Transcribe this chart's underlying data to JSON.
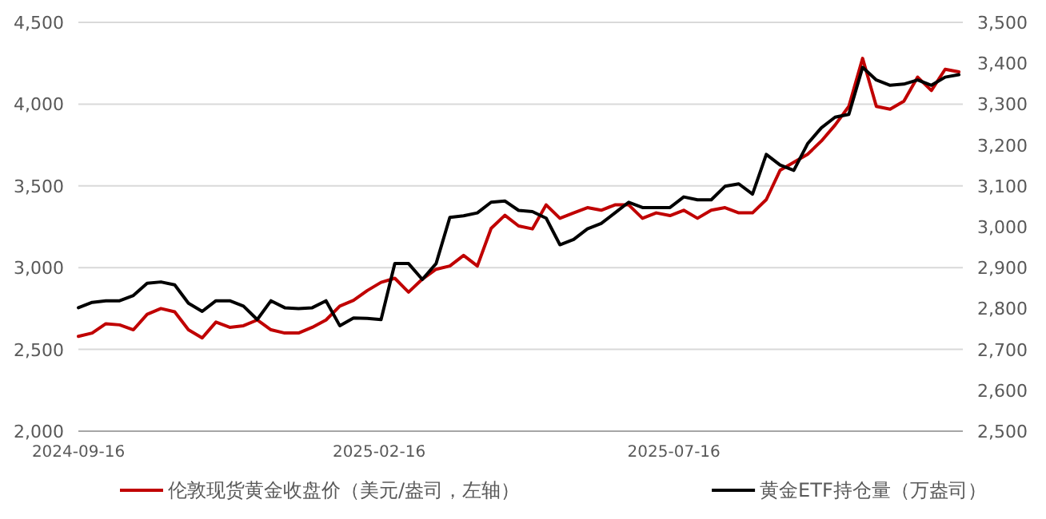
{
  "chart_data": {
    "type": "line",
    "x": [
      "2024-09-16",
      "2024-09-23",
      "2024-09-30",
      "2024-10-07",
      "2024-10-14",
      "2024-10-21",
      "2024-10-28",
      "2024-11-04",
      "2024-11-11",
      "2024-11-18",
      "2024-11-25",
      "2024-12-02",
      "2024-12-09",
      "2024-12-16",
      "2024-12-23",
      "2024-12-30",
      "2025-01-06",
      "2025-01-13",
      "2025-01-20",
      "2025-01-27",
      "2025-02-03",
      "2025-02-10",
      "2025-02-17",
      "2025-02-24",
      "2025-03-03",
      "2025-03-10",
      "2025-03-17",
      "2025-03-24",
      "2025-03-31",
      "2025-04-07",
      "2025-04-14",
      "2025-04-21",
      "2025-04-28",
      "2025-05-05",
      "2025-05-12",
      "2025-05-19",
      "2025-05-26",
      "2025-06-02",
      "2025-06-09",
      "2025-06-16",
      "2025-06-23",
      "2025-06-30",
      "2025-07-07",
      "2025-07-14",
      "2025-07-21",
      "2025-07-28",
      "2025-08-04",
      "2025-08-11",
      "2025-08-18",
      "2025-08-25",
      "2025-09-01",
      "2025-09-08",
      "2025-09-15",
      "2025-09-22",
      "2025-09-29",
      "2025-10-06",
      "2025-10-13",
      "2025-10-20",
      "2025-10-27",
      "2025-11-03",
      "2025-11-10",
      "2025-11-17",
      "2025-11-24",
      "2025-12-01",
      "2025-12-08"
    ],
    "series": [
      {
        "name": "伦敦现货黄金收盘价（美元/盎司，左轴）",
        "color": "#c00000",
        "values": [
          2580,
          2600,
          2657,
          2650,
          2620,
          2715,
          2750,
          2730,
          2620,
          2570,
          2667,
          2635,
          2645,
          2680,
          2620,
          2600,
          2600,
          2635,
          2680,
          2765,
          2800,
          2860,
          2910,
          2935,
          2850,
          2930,
          2990,
          3010,
          3075,
          3010,
          3240,
          3320,
          3255,
          3237,
          3384,
          3302,
          3335,
          3367,
          3351,
          3384,
          3384,
          3302,
          3335,
          3318,
          3351,
          3302,
          3351,
          3367,
          3335,
          3335,
          3416,
          3595,
          3644,
          3693,
          3774,
          3872,
          3986,
          4280,
          3986,
          3969,
          4018,
          4165,
          4083,
          4213,
          4197
        ]
      },
      {
        "name": "黄金ETF持仓量（万盎司）",
        "color": "#000000",
        "axis": "y2",
        "values": [
          2802,
          2815,
          2819,
          2819,
          2832,
          2862,
          2865,
          2858,
          2813,
          2793,
          2819,
          2819,
          2806,
          2773,
          2819,
          2802,
          2800,
          2802,
          2819,
          2758,
          2777,
          2776,
          2773,
          2910,
          2910,
          2871,
          2910,
          3023,
          3027,
          3034,
          3060,
          3063,
          3040,
          3037,
          3021,
          2956,
          2969,
          2995,
          3008,
          3034,
          3060,
          3047,
          3047,
          3047,
          3073,
          3066,
          3066,
          3099,
          3105,
          3080,
          3177,
          3151,
          3138,
          3203,
          3242,
          3268,
          3275,
          3390,
          3359,
          3346,
          3349,
          3359,
          3346,
          3366,
          3372
        ]
      }
    ],
    "xlim": [
      "2024-09-16",
      "2025-12-10"
    ],
    "xticks": [
      {
        "value": "2024-09-16",
        "label": "2024-09-16"
      },
      {
        "value": "2025-02-16",
        "label": "2025-02-16"
      },
      {
        "value": "2025-07-16",
        "label": "2025-07-16"
      }
    ],
    "ylim": [
      2000,
      4500
    ],
    "yticks": [
      {
        "value": 2000,
        "label": "2,000"
      },
      {
        "value": 2500,
        "label": "2,500"
      },
      {
        "value": 3000,
        "label": "3,000"
      },
      {
        "value": 3500,
        "label": "3,500"
      },
      {
        "value": 4000,
        "label": "4,000"
      },
      {
        "value": 4500,
        "label": "4,500"
      }
    ],
    "y2lim": [
      2500,
      3500
    ],
    "y2ticks": [
      {
        "value": 2500,
        "label": "2,500"
      },
      {
        "value": 2600,
        "label": "2,600"
      },
      {
        "value": 2700,
        "label": "2,700"
      },
      {
        "value": 2800,
        "label": "2,800"
      },
      {
        "value": 2900,
        "label": "2,900"
      },
      {
        "value": 3000,
        "label": "3,000"
      },
      {
        "value": 3100,
        "label": "3,100"
      },
      {
        "value": 3200,
        "label": "3,200"
      },
      {
        "value": 3300,
        "label": "3,300"
      },
      {
        "value": 3400,
        "label": "3,400"
      },
      {
        "value": 3500,
        "label": "3,500"
      }
    ],
    "grid": "y",
    "legend": "bottom",
    "marker": "none",
    "line_style": "solid"
  }
}
